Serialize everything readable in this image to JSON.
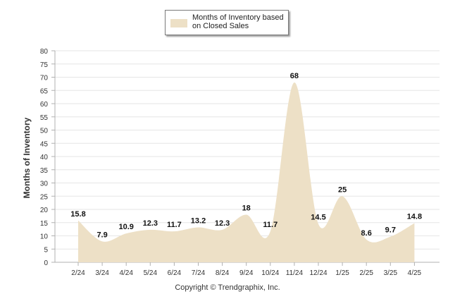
{
  "legend": {
    "label": "Months of Inventory based on Closed Sales",
    "swatch_color": "#EDE0C6"
  },
  "copyright": "Copyright © Trendgraphix, Inc.",
  "chart_data": {
    "type": "area",
    "ylabel": "Months of Inventory",
    "xlabel": "",
    "ylim": [
      0,
      80
    ],
    "yticks": [
      0,
      5,
      10,
      15,
      20,
      25,
      30,
      35,
      40,
      45,
      50,
      55,
      60,
      65,
      70,
      75,
      80
    ],
    "grid": true,
    "legend_position": "top-center",
    "categories": [
      "2/24",
      "3/24",
      "4/24",
      "5/24",
      "6/24",
      "7/24",
      "8/24",
      "9/24",
      "10/24",
      "11/24",
      "12/24",
      "1/25",
      "2/25",
      "3/25",
      "4/25"
    ],
    "series": [
      {
        "name": "Months of Inventory based on Closed Sales",
        "color": "#EDE0C6",
        "values": [
          15.8,
          7.9,
          10.9,
          12.3,
          11.7,
          13.2,
          12.3,
          18,
          11.7,
          68,
          14.5,
          25,
          8.6,
          9.7,
          14.8
        ]
      }
    ]
  }
}
